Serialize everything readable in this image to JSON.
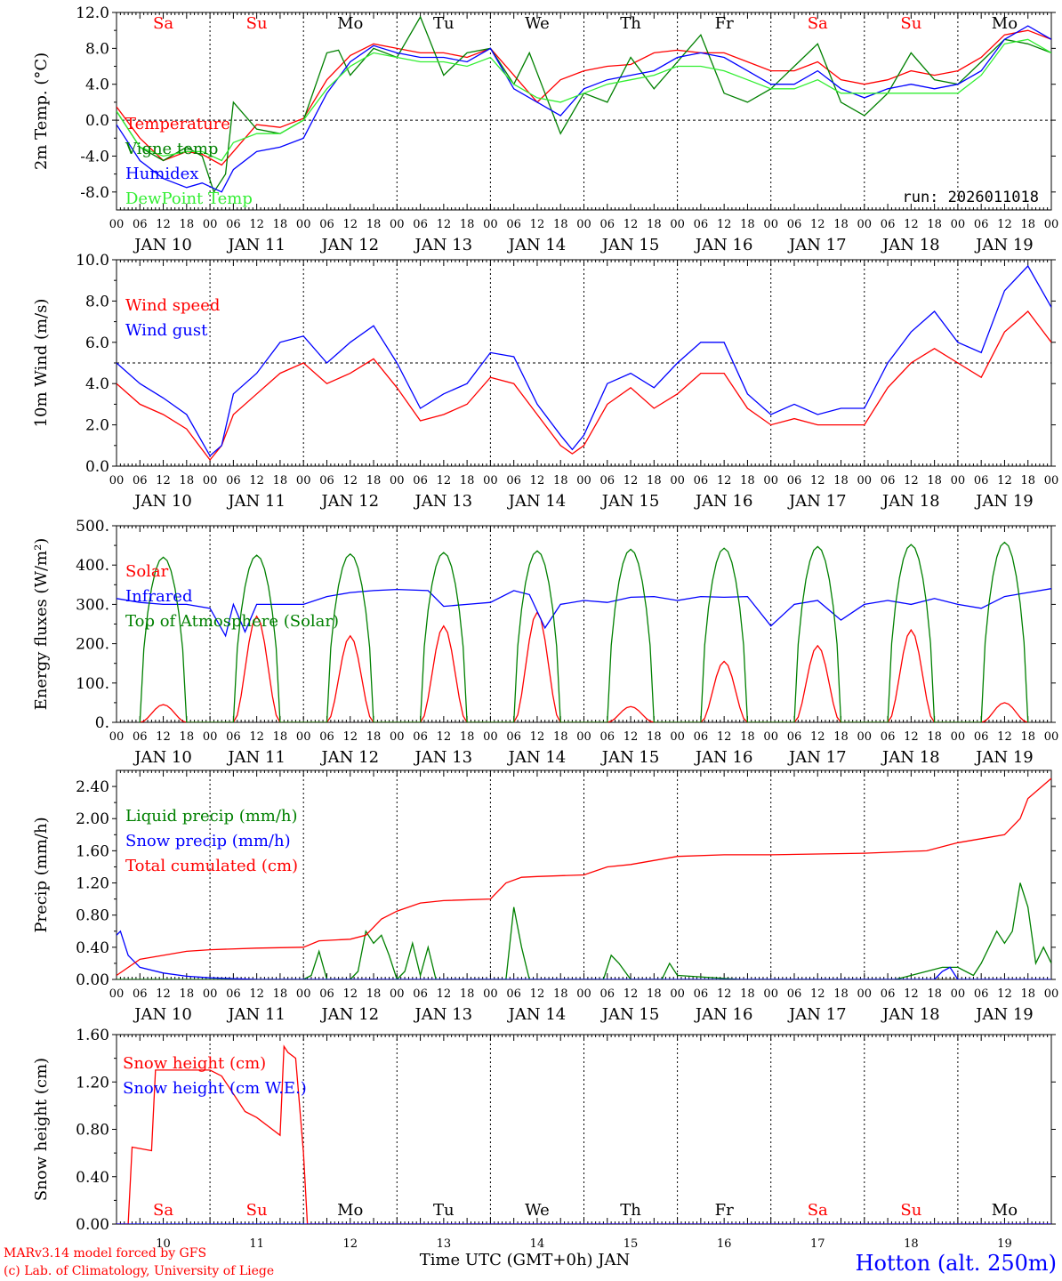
{
  "figure": {
    "run_label": "run: 2026011018",
    "footer_left_1": "MARv3.14 model forced by GFS",
    "footer_left_2": "(c) Lab. of Climatology, University of Liege",
    "footer_xlabel": "Time UTC (GMT+0h) JAN",
    "station": "Hotton (alt. 250m)",
    "colors": {
      "red": "#ff0000",
      "green": "#008000",
      "blue": "#0000ff",
      "lightgreen": "#33ee33",
      "black": "#000000"
    }
  },
  "time_axis": {
    "hour_ticks": [
      "00",
      "06",
      "12",
      "18"
    ],
    "date_labels": [
      "JAN 10",
      "JAN 11",
      "JAN 12",
      "JAN 13",
      "JAN 14",
      "JAN 15",
      "JAN 16",
      "JAN 17",
      "JAN 18",
      "JAN 19"
    ],
    "day_names": [
      "Sa",
      "Su",
      "Mo",
      "Tu",
      "We",
      "Th",
      "Fr",
      "Sa",
      "Su",
      "Mo"
    ],
    "weekend_flags": [
      true,
      true,
      false,
      false,
      false,
      false,
      false,
      true,
      true,
      false
    ],
    "bottom_day_numbers": [
      "10",
      "11",
      "12",
      "13",
      "14",
      "15",
      "16",
      "17",
      "18",
      "19"
    ]
  },
  "chart_data": [
    {
      "type": "line",
      "ylabel": "2m Temp. (°C)",
      "ylim": [
        -10,
        12
      ],
      "yticks": [
        "-8.0",
        "-4.0",
        "0.0",
        "4.0",
        "8.0",
        "12.0"
      ],
      "ytick_values": [
        -8,
        -4,
        0,
        4,
        8,
        12
      ],
      "ref_line": 0,
      "x_unit": "hours since JAN 10 00 UTC",
      "series": [
        {
          "name": "Temperature",
          "color": "#ff0000",
          "x": [
            0,
            6,
            12,
            18,
            22,
            27,
            30,
            36,
            42,
            48,
            54,
            60,
            66,
            72,
            78,
            84,
            90,
            96,
            102,
            108,
            114,
            120,
            126,
            132,
            138,
            144,
            150,
            156,
            162,
            168,
            174,
            180,
            186,
            192,
            198,
            204,
            210,
            216,
            222,
            228,
            234,
            240
          ],
          "values": [
            1.5,
            -2.0,
            -4.5,
            -3.5,
            -3.8,
            -5.0,
            -3.5,
            -0.5,
            -0.8,
            0.2,
            4.5,
            7.2,
            8.5,
            8.0,
            7.5,
            7.5,
            7.0,
            8.0,
            5.0,
            2.0,
            4.5,
            5.5,
            6.0,
            6.2,
            7.5,
            7.8,
            7.5,
            7.5,
            6.5,
            5.5,
            5.5,
            6.5,
            4.5,
            4.0,
            4.5,
            5.5,
            5.0,
            5.5,
            7.0,
            9.5,
            10.0,
            9.0
          ]
        },
        {
          "name": "Vigne temp",
          "color": "#008000",
          "x": [
            0,
            6,
            12,
            18,
            22,
            25,
            28,
            30,
            36,
            42,
            48,
            54,
            57,
            60,
            66,
            72,
            78,
            84,
            90,
            96,
            102,
            106,
            110,
            114,
            120,
            126,
            132,
            138,
            144,
            150,
            156,
            162,
            168,
            174,
            180,
            186,
            192,
            198,
            204,
            210,
            216,
            222,
            228,
            234,
            240
          ],
          "values": [
            1.0,
            -3.0,
            -4.5,
            -3.0,
            -4.0,
            -8.0,
            -6.0,
            2.0,
            -1.0,
            -1.5,
            0.0,
            7.5,
            7.8,
            5.0,
            8.0,
            7.0,
            11.5,
            5.0,
            7.5,
            8.0,
            4.0,
            7.5,
            3.0,
            -1.5,
            3.0,
            2.0,
            7.0,
            3.5,
            6.5,
            9.5,
            3.0,
            2.0,
            3.5,
            6.0,
            8.5,
            2.0,
            0.5,
            3.0,
            7.5,
            4.5,
            4.0,
            6.5,
            9.0,
            8.5,
            7.5
          ]
        },
        {
          "name": "Humidex",
          "color": "#0000ff",
          "x": [
            0,
            6,
            12,
            18,
            22,
            27,
            30,
            36,
            42,
            48,
            54,
            60,
            66,
            72,
            78,
            84,
            90,
            96,
            102,
            108,
            114,
            120,
            126,
            132,
            138,
            144,
            150,
            156,
            162,
            168,
            174,
            180,
            186,
            192,
            198,
            204,
            210,
            216,
            222,
            228,
            234,
            240
          ],
          "values": [
            -0.5,
            -4.5,
            -6.5,
            -7.5,
            -7.0,
            -8.0,
            -5.5,
            -3.5,
            -3.0,
            -2.0,
            3.0,
            6.5,
            8.3,
            7.5,
            7.0,
            7.0,
            6.5,
            8.0,
            3.5,
            2.0,
            0.5,
            3.5,
            4.5,
            5.0,
            5.5,
            7.0,
            7.5,
            7.0,
            5.5,
            4.0,
            4.0,
            5.5,
            3.5,
            2.5,
            3.5,
            4.0,
            3.5,
            4.0,
            5.5,
            9.0,
            10.5,
            9.0
          ]
        },
        {
          "name": "DewPoint Temp",
          "color": "#33ee33",
          "x": [
            0,
            6,
            12,
            18,
            22,
            27,
            30,
            36,
            42,
            48,
            54,
            60,
            66,
            72,
            78,
            84,
            90,
            96,
            102,
            108,
            114,
            120,
            126,
            132,
            138,
            144,
            150,
            156,
            162,
            168,
            174,
            180,
            186,
            192,
            198,
            204,
            210,
            216,
            222,
            228,
            234,
            240
          ],
          "values": [
            1.0,
            -3.0,
            -4.0,
            -3.5,
            -3.5,
            -4.5,
            -2.5,
            -1.5,
            -1.5,
            0.0,
            3.5,
            6.0,
            7.5,
            7.0,
            6.5,
            6.5,
            6.0,
            7.0,
            4.0,
            2.5,
            2.0,
            3.0,
            4.0,
            4.5,
            5.0,
            6.0,
            6.0,
            5.5,
            4.5,
            3.5,
            3.5,
            4.5,
            3.0,
            3.0,
            3.0,
            3.0,
            3.0,
            3.0,
            5.0,
            8.5,
            9.0,
            7.5
          ]
        }
      ]
    },
    {
      "type": "line",
      "ylabel": "10m Wind (m/s)",
      "ylim": [
        0,
        10
      ],
      "yticks": [
        "0.0",
        "2.0",
        "4.0",
        "6.0",
        "8.0",
        "10.0"
      ],
      "ytick_values": [
        0,
        2,
        4,
        6,
        8,
        10
      ],
      "ref_line": 5,
      "x_unit": "hours since JAN 10 00 UTC",
      "series": [
        {
          "name": "Wind speed",
          "color": "#ff0000",
          "x": [
            0,
            6,
            12,
            18,
            24,
            27,
            30,
            36,
            42,
            48,
            54,
            60,
            66,
            72,
            78,
            84,
            90,
            96,
            102,
            108,
            114,
            117,
            120,
            126,
            132,
            138,
            144,
            150,
            156,
            162,
            168,
            174,
            180,
            186,
            192,
            198,
            204,
            210,
            216,
            222,
            228,
            234,
            240
          ],
          "values": [
            4.0,
            3.0,
            2.5,
            1.8,
            0.3,
            1.0,
            2.5,
            3.5,
            4.5,
            5.0,
            4.0,
            4.5,
            5.2,
            3.8,
            2.2,
            2.5,
            3.0,
            4.3,
            4.0,
            2.5,
            1.0,
            0.6,
            1.0,
            3.0,
            3.8,
            2.8,
            3.5,
            4.5,
            4.5,
            2.8,
            2.0,
            2.3,
            2.0,
            2.0,
            2.0,
            3.8,
            5.0,
            5.7,
            5.0,
            4.3,
            6.5,
            7.5,
            6.0
          ]
        },
        {
          "name": "Wind gust",
          "color": "#0000ff",
          "x": [
            0,
            6,
            12,
            18,
            24,
            27,
            30,
            36,
            42,
            48,
            54,
            60,
            66,
            72,
            78,
            84,
            90,
            96,
            102,
            108,
            114,
            117,
            120,
            126,
            132,
            138,
            144,
            150,
            156,
            162,
            168,
            174,
            180,
            186,
            192,
            198,
            204,
            210,
            216,
            222,
            228,
            234,
            240
          ],
          "values": [
            5.0,
            4.0,
            3.3,
            2.5,
            0.5,
            1.0,
            3.5,
            4.5,
            6.0,
            6.3,
            5.0,
            6.0,
            6.8,
            5.0,
            2.8,
            3.5,
            4.0,
            5.5,
            5.3,
            3.0,
            1.5,
            0.8,
            1.5,
            4.0,
            4.5,
            3.8,
            5.0,
            6.0,
            6.0,
            3.5,
            2.5,
            3.0,
            2.5,
            2.8,
            2.8,
            5.0,
            6.5,
            7.5,
            6.0,
            5.5,
            8.5,
            9.7,
            7.7
          ]
        }
      ]
    },
    {
      "type": "line",
      "ylabel": "Energy fluxes (W/m²)",
      "ylim": [
        0,
        500
      ],
      "yticks": [
        "0.",
        "100.",
        "200.",
        "300.",
        "400.",
        "500."
      ],
      "ytick_values": [
        0,
        100,
        200,
        300,
        400,
        500
      ],
      "x_unit": "hours since JAN 10 00 UTC",
      "daily_peaks": {
        "solar": [
          45,
          270,
          220,
          245,
          280,
          40,
          155,
          195,
          235,
          50
        ],
        "top_of_atmosphere": [
          420,
          425,
          428,
          432,
          436,
          440,
          443,
          447,
          452,
          458
        ]
      },
      "series": [
        {
          "name": "Solar",
          "color": "#ff0000"
        },
        {
          "name": "Infrared",
          "color": "#0000ff",
          "x": [
            0,
            6,
            12,
            18,
            24,
            28,
            30,
            33,
            36,
            42,
            48,
            54,
            60,
            66,
            72,
            80,
            84,
            90,
            96,
            102,
            106,
            110,
            114,
            120,
            126,
            132,
            138,
            144,
            150,
            156,
            162,
            168,
            174,
            180,
            186,
            192,
            198,
            204,
            210,
            216,
            222,
            228,
            234,
            240
          ],
          "values": [
            315,
            305,
            300,
            300,
            290,
            220,
            300,
            230,
            300,
            300,
            300,
            320,
            330,
            335,
            338,
            335,
            295,
            300,
            305,
            335,
            325,
            240,
            300,
            310,
            305,
            318,
            320,
            310,
            320,
            318,
            320,
            245,
            300,
            310,
            260,
            300,
            310,
            300,
            315,
            300,
            290,
            320,
            330,
            340
          ]
        },
        {
          "name": "Top of Atmosphere (Solar)",
          "color": "#008000"
        }
      ]
    },
    {
      "type": "line",
      "ylabel": "Precip (mm/h)",
      "ylim": [
        0,
        2.6
      ],
      "yticks": [
        "0.00",
        "0.40",
        "0.80",
        "1.20",
        "1.60",
        "2.00",
        "2.40"
      ],
      "ytick_values": [
        0,
        0.4,
        0.8,
        1.2,
        1.6,
        2.0,
        2.4
      ],
      "x_unit": "hours since JAN 10 00 UTC",
      "series": [
        {
          "name": "Liquid precip (mm/h)",
          "color": "#008000",
          "x": [
            0,
            48,
            50,
            52,
            54,
            60,
            62,
            64,
            66,
            68,
            70,
            72,
            74,
            76,
            78,
            80,
            82,
            84,
            96,
            100,
            102,
            104,
            106,
            120,
            125,
            127,
            129,
            132,
            135,
            140,
            142,
            144,
            160,
            192,
            200,
            204,
            212,
            216,
            220,
            222,
            226,
            228,
            230,
            232,
            234,
            236,
            238,
            240
          ],
          "values": [
            0,
            0,
            0.05,
            0.35,
            0,
            0,
            0.1,
            0.6,
            0.45,
            0.55,
            0.3,
            0,
            0.1,
            0.45,
            0.05,
            0.4,
            0,
            0,
            0,
            0,
            0.9,
            0.4,
            0,
            0,
            0,
            0.3,
            0.2,
            0,
            0,
            0,
            0.2,
            0.05,
            0,
            0,
            0,
            0.05,
            0.15,
            0.15,
            0.05,
            0.2,
            0.6,
            0.45,
            0.6,
            1.2,
            0.9,
            0.2,
            0.4,
            0.2
          ]
        },
        {
          "name": "Snow precip (mm/h)",
          "color": "#0000ff",
          "x": [
            0,
            1,
            3,
            6,
            12,
            18,
            24,
            30,
            36,
            210,
            212,
            214,
            216,
            240
          ],
          "values": [
            0.55,
            0.6,
            0.3,
            0.15,
            0.08,
            0.04,
            0.02,
            0.01,
            0,
            0,
            0.1,
            0.15,
            0,
            0
          ]
        },
        {
          "name": "Total cumulated (cm)",
          "color": "#ff0000",
          "x": [
            0,
            6,
            12,
            18,
            24,
            36,
            48,
            52,
            60,
            64,
            68,
            72,
            78,
            84,
            96,
            100,
            104,
            108,
            120,
            126,
            132,
            144,
            156,
            168,
            180,
            192,
            208,
            216,
            222,
            228,
            232,
            234,
            240
          ],
          "values": [
            0.05,
            0.25,
            0.3,
            0.35,
            0.37,
            0.39,
            0.4,
            0.48,
            0.5,
            0.55,
            0.75,
            0.85,
            0.95,
            0.98,
            1.0,
            1.2,
            1.27,
            1.28,
            1.3,
            1.4,
            1.43,
            1.53,
            1.55,
            1.55,
            1.56,
            1.57,
            1.6,
            1.7,
            1.75,
            1.8,
            2.0,
            2.25,
            2.5
          ]
        }
      ]
    },
    {
      "type": "line",
      "ylabel": "Snow height (cm)",
      "ylim": [
        0,
        1.6
      ],
      "yticks": [
        "0.00",
        "0.40",
        "0.80",
        "1.20",
        "1.60"
      ],
      "ytick_values": [
        0,
        0.4,
        0.8,
        1.2,
        1.6
      ],
      "x_unit": "hours since JAN 10 00 UTC",
      "series": [
        {
          "name": "Snow height (cm)",
          "color": "#ff0000",
          "x": [
            0,
            3,
            4,
            9,
            10,
            24,
            27,
            30,
            33,
            36,
            42,
            43,
            44,
            46,
            48,
            49,
            51,
            240
          ],
          "values": [
            0,
            0,
            0.65,
            0.62,
            1.3,
            1.3,
            1.25,
            1.1,
            0.95,
            0.9,
            0.75,
            1.5,
            1.45,
            1.4,
            0.6,
            0,
            0,
            0
          ]
        },
        {
          "name": "Snow height (cm W.E.)",
          "color": "#0000ff",
          "x": [
            0,
            240
          ],
          "values": [
            0,
            0
          ]
        }
      ]
    }
  ]
}
